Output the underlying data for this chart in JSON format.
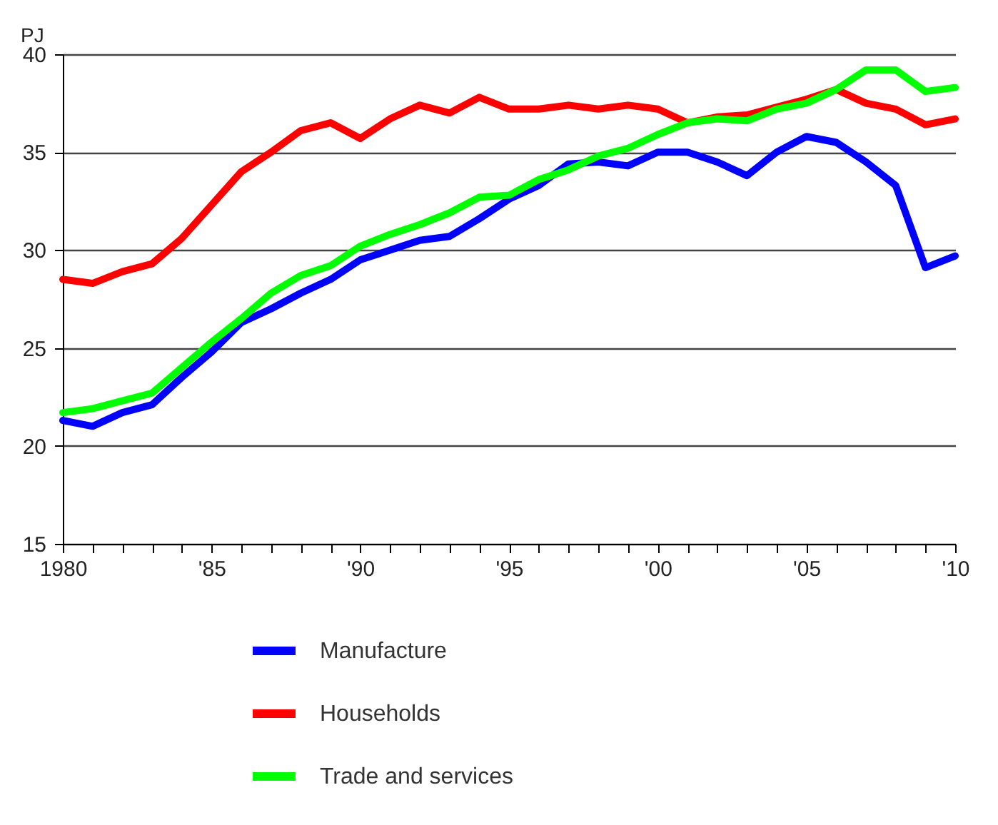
{
  "chart_data": {
    "type": "line",
    "ylabel": "PJ",
    "x": [
      1980,
      1981,
      1982,
      1983,
      1984,
      1985,
      1986,
      1987,
      1988,
      1989,
      1990,
      1991,
      1992,
      1993,
      1994,
      1995,
      1996,
      1997,
      1998,
      1999,
      2000,
      2001,
      2002,
      2003,
      2004,
      2005,
      2006,
      2007,
      2008,
      2009,
      2010
    ],
    "series": [
      {
        "name": "Manufacture",
        "color": "#0000ff",
        "values": [
          21.3,
          21.0,
          21.7,
          22.1,
          23.5,
          24.8,
          26.3,
          27.0,
          27.8,
          28.5,
          29.5,
          30.0,
          30.5,
          30.7,
          31.6,
          32.6,
          33.3,
          34.4,
          34.5,
          34.3,
          35.0,
          35.0,
          34.5,
          33.8,
          35.0,
          35.8,
          35.5,
          34.5,
          33.3,
          29.1,
          29.7
        ]
      },
      {
        "name": "Households",
        "color": "#ff0000",
        "values": [
          28.5,
          28.3,
          28.9,
          29.3,
          30.6,
          32.3,
          34.0,
          35.0,
          36.1,
          36.5,
          35.7,
          36.7,
          37.4,
          37.0,
          37.8,
          37.2,
          37.2,
          37.4,
          37.2,
          37.4,
          37.2,
          36.5,
          36.8,
          36.9,
          37.3,
          37.7,
          38.2,
          37.5,
          37.2,
          36.4,
          36.7
        ]
      },
      {
        "name": "Trade and services",
        "color": "#00ff00",
        "values": [
          21.7,
          21.9,
          22.3,
          22.7,
          24.0,
          25.3,
          26.5,
          27.8,
          28.7,
          29.2,
          30.2,
          30.8,
          31.3,
          31.9,
          32.7,
          32.8,
          33.6,
          34.1,
          34.8,
          35.2,
          35.9,
          36.5,
          36.7,
          36.6,
          37.2,
          37.5,
          38.2,
          39.2,
          39.2,
          38.1,
          38.3
        ]
      }
    ],
    "xlim": [
      1980,
      2010
    ],
    "xticks": [
      1980,
      {
        "value": 1981,
        "label": null
      },
      {
        "value": 1982,
        "label": null
      },
      {
        "value": 1983,
        "label": null
      },
      {
        "value": 1984,
        "label": null
      },
      {
        "value": 1985,
        "label": "'85"
      },
      {
        "value": 1986,
        "label": null
      },
      {
        "value": 1987,
        "label": null
      },
      {
        "value": 1988,
        "label": null
      },
      {
        "value": 1989,
        "label": null
      },
      {
        "value": 1990,
        "label": "'90"
      },
      {
        "value": 1991,
        "label": null
      },
      {
        "value": 1992,
        "label": null
      },
      {
        "value": 1993,
        "label": null
      },
      {
        "value": 1994,
        "label": null
      },
      {
        "value": 1995,
        "label": "'95"
      },
      {
        "value": 1996,
        "label": null
      },
      {
        "value": 1997,
        "label": null
      },
      {
        "value": 1998,
        "label": null
      },
      {
        "value": 1999,
        "label": null
      },
      {
        "value": 2000,
        "label": "'00"
      },
      {
        "value": 2001,
        "label": null
      },
      {
        "value": 2002,
        "label": null
      },
      {
        "value": 2003,
        "label": null
      },
      {
        "value": 2004,
        "label": null
      },
      {
        "value": 2005,
        "label": "'05"
      },
      {
        "value": 2006,
        "label": null
      },
      {
        "value": 2007,
        "label": null
      },
      {
        "value": 2008,
        "label": null
      },
      {
        "value": 2009,
        "label": null
      },
      {
        "value": 2010,
        "label": "'10"
      }
    ],
    "ylim": [
      15,
      40
    ],
    "yticks": [
      15,
      20,
      25,
      30,
      35,
      40
    ],
    "grid": "y",
    "legend": "bottom",
    "marker": "none",
    "line_style": "solid"
  }
}
